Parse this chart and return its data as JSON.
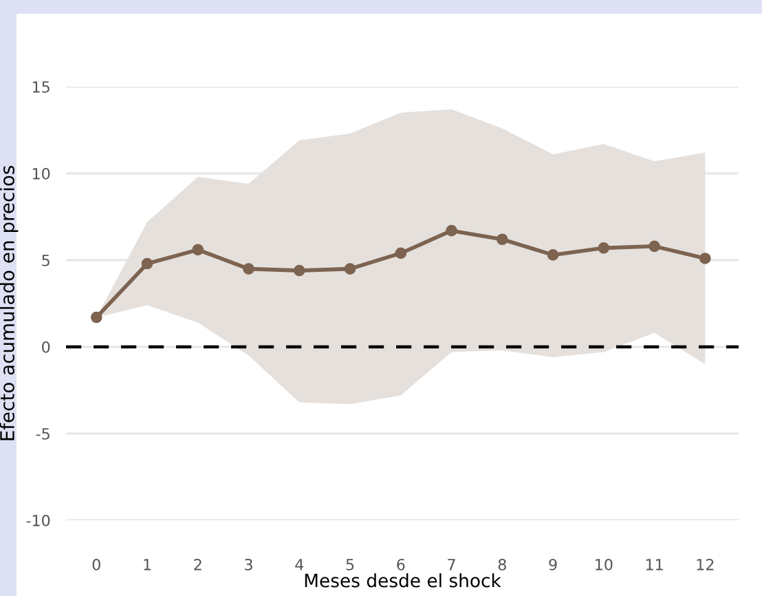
{
  "chart_data": {
    "type": "line",
    "xlabel": "Meses desde el shock",
    "ylabel": "Efecto acumulado en precios",
    "x": [
      0,
      1,
      2,
      3,
      4,
      5,
      6,
      7,
      8,
      9,
      10,
      11,
      12
    ],
    "series": [
      {
        "color": "#7d6350",
        "values": [
          1.7,
          4.8,
          5.6,
          4.5,
          4.4,
          4.5,
          5.4,
          6.7,
          6.2,
          5.3,
          5.7,
          5.8,
          5.1
        ],
        "lower": [
          1.7,
          2.4,
          1.4,
          -0.5,
          -3.2,
          -3.3,
          -2.8,
          -0.3,
          -0.2,
          -0.6,
          -0.3,
          0.8,
          -1.0
        ],
        "upper": [
          1.7,
          7.2,
          9.8,
          9.4,
          11.9,
          12.3,
          13.5,
          13.7,
          12.6,
          11.1,
          11.7,
          10.7,
          11.2
        ]
      }
    ],
    "xlim": [
      -0.6,
      12.66
    ],
    "xticks": [
      0,
      1,
      2,
      3,
      4,
      5,
      6,
      7,
      8,
      9,
      10,
      11,
      12
    ],
    "ylim": [
      -10,
      15
    ],
    "yticks": [
      -10,
      -5,
      0,
      5,
      10,
      15
    ],
    "ref_lines": [
      {
        "axis": "y",
        "value": 0,
        "color": "#000000",
        "line_style": "dashed"
      }
    ],
    "grid": "y",
    "marker": "circle",
    "line_style": "solid"
  }
}
